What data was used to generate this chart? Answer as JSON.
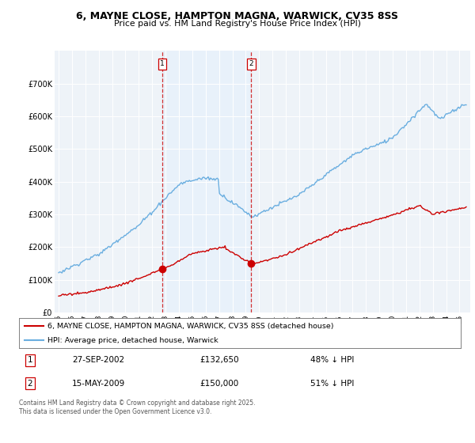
{
  "title_line1": "6, MAYNE CLOSE, HAMPTON MAGNA, WARWICK, CV35 8SS",
  "title_line2": "Price paid vs. HM Land Registry's House Price Index (HPI)",
  "ylim": [
    0,
    800000
  ],
  "yticks": [
    0,
    100000,
    200000,
    300000,
    400000,
    500000,
    600000,
    700000
  ],
  "ytick_labels": [
    "£0",
    "£100K",
    "£200K",
    "£300K",
    "£400K",
    "£500K",
    "£600K",
    "£700K"
  ],
  "hpi_color": "#6aaee0",
  "price_color": "#cc0000",
  "vline_color": "#cc0000",
  "shade_color": "#ddeeff",
  "sale1_year": 2002.75,
  "sale1_price": 132650,
  "sale1_date": "27-SEP-2002",
  "sale1_hpi_pct": "48% ↓ HPI",
  "sale2_year": 2009.417,
  "sale2_price": 150000,
  "sale2_date": "15-MAY-2009",
  "sale2_hpi_pct": "51% ↓ HPI",
  "legend_label1": "6, MAYNE CLOSE, HAMPTON MAGNA, WARWICK, CV35 8SS (detached house)",
  "legend_label2": "HPI: Average price, detached house, Warwick",
  "footnote": "Contains HM Land Registry data © Crown copyright and database right 2025.\nThis data is licensed under the Open Government Licence v3.0.",
  "bg_color": "#ffffff",
  "plot_bg": "#eef3f8"
}
